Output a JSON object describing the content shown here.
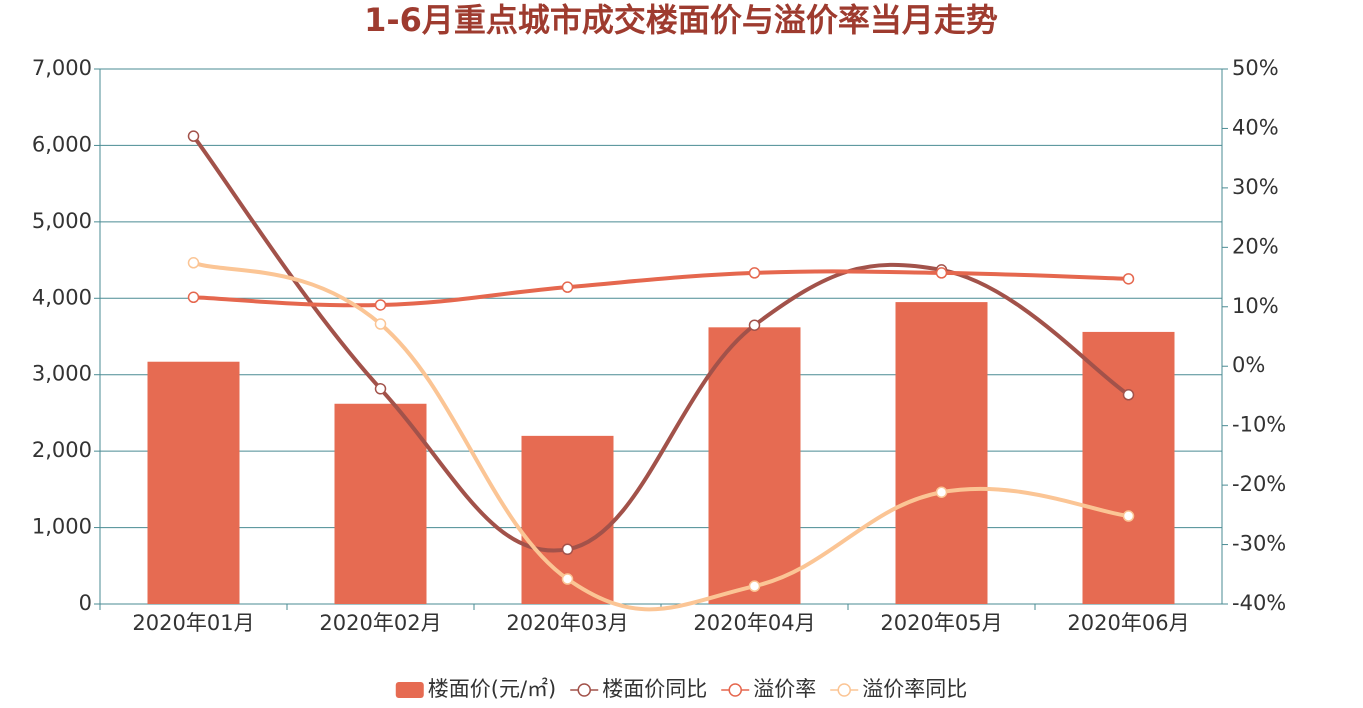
{
  "chart_data": {
    "type": "bar-line",
    "title": "1-6月重点城市成交楼面价与溢价率当月走势",
    "categories": [
      "2020年01月",
      "2020年02月",
      "2020年03月",
      "2020年04月",
      "2020年05月",
      "2020年06月"
    ],
    "series": [
      {
        "name": "楼面价(元/㎡)",
        "type": "bar",
        "color": "#e66b52",
        "values": [
          3170,
          2620,
          2200,
          3620,
          3950,
          3560
        ]
      },
      {
        "name": "楼面价同比",
        "type": "line",
        "axis": "y2",
        "color": "#a2524a",
        "values": [
          38.7,
          -3.8,
          -30.8,
          6.9,
          16.2,
          -4.8
        ]
      },
      {
        "name": "溢价率",
        "type": "line",
        "axis": "y2",
        "color": "#e5674e",
        "values": [
          11.6,
          10.3,
          13.3,
          15.7,
          15.7,
          14.7
        ]
      },
      {
        "name": "溢价率同比",
        "type": "line",
        "axis": "y2",
        "color": "#fbc595",
        "values": [
          17.4,
          7.1,
          -35.8,
          -37.0,
          -21.2,
          -25.2
        ]
      }
    ],
    "ylim": [
      0,
      7000
    ],
    "yticks": [
      0,
      {
        "value": 1000,
        "label": "1,000"
      },
      {
        "value": 2000,
        "label": "2,000"
      },
      {
        "value": 3000,
        "label": "3,000"
      },
      {
        "value": 4000,
        "label": "4,000"
      },
      {
        "value": 5000,
        "label": "5,000"
      },
      {
        "value": 6000,
        "label": "6,000"
      },
      {
        "value": 7000,
        "label": "7,000"
      }
    ],
    "y2lim": [
      -40,
      50
    ],
    "y2ticks": [
      {
        "value": -40,
        "label": "-40%"
      },
      {
        "value": -30,
        "label": "-30%"
      },
      {
        "value": -20,
        "label": "-20%"
      },
      {
        "value": -10,
        "label": "-10%"
      },
      {
        "value": 0,
        "label": "0%"
      },
      {
        "value": 10,
        "label": "10%"
      },
      {
        "value": 20,
        "label": "20%"
      },
      {
        "value": 30,
        "label": "30%"
      },
      {
        "value": 40,
        "label": "40%"
      },
      {
        "value": 50,
        "label": "50%"
      }
    ],
    "grid": true,
    "legend": "bottom"
  }
}
